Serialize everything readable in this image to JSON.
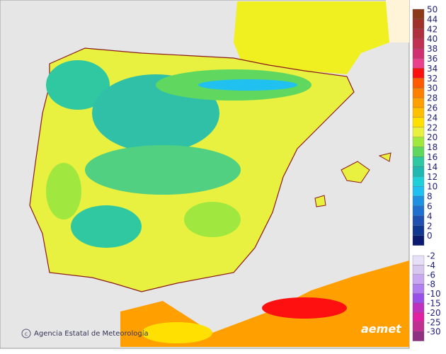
{
  "legend": {
    "warm": [
      {
        "value": 50,
        "color": "#8b3a1a"
      },
      {
        "value": 44,
        "color": "#a0302a"
      },
      {
        "value": 42,
        "color": "#b03040"
      },
      {
        "value": 40,
        "color": "#c03050"
      },
      {
        "value": 38,
        "color": "#d03070"
      },
      {
        "value": 36,
        "color": "#e8408a"
      },
      {
        "value": 34,
        "color": "#ff1010"
      },
      {
        "value": 32,
        "color": "#ff5a00"
      },
      {
        "value": 30,
        "color": "#ff8000"
      },
      {
        "value": 28,
        "color": "#ffa000"
      },
      {
        "value": 26,
        "color": "#ffc000"
      },
      {
        "value": 24,
        "color": "#ffe000"
      },
      {
        "value": 22,
        "color": "#e8f040"
      },
      {
        "value": 20,
        "color": "#a0e840"
      },
      {
        "value": 18,
        "color": "#60d860"
      },
      {
        "value": 16,
        "color": "#30c8a0"
      },
      {
        "value": 14,
        "color": "#20b8b0"
      },
      {
        "value": 12,
        "color": "#20d0d8"
      },
      {
        "value": 10,
        "color": "#20c0f0"
      },
      {
        "value": 8,
        "color": "#2090e0"
      },
      {
        "value": 6,
        "color": "#2070d0"
      },
      {
        "value": 4,
        "color": "#2050b0"
      },
      {
        "value": 2,
        "color": "#103890"
      },
      {
        "value": 0,
        "color": "#0a1a70"
      }
    ],
    "cold": [
      {
        "value": -2,
        "color": "#e8e0f8"
      },
      {
        "value": -4,
        "color": "#d8c8f0"
      },
      {
        "value": -6,
        "color": "#c8a8f0"
      },
      {
        "value": -8,
        "color": "#b080f0"
      },
      {
        "value": -10,
        "color": "#9850e8"
      },
      {
        "value": -15,
        "color": "#c030c0"
      },
      {
        "value": -20,
        "color": "#e020a0"
      },
      {
        "value": -25,
        "color": "#c03090"
      },
      {
        "value": -30,
        "color": "#903080"
      }
    ]
  },
  "footer": {
    "credit": "Agencia Estatal de Meteorología",
    "logo": "aemet"
  }
}
